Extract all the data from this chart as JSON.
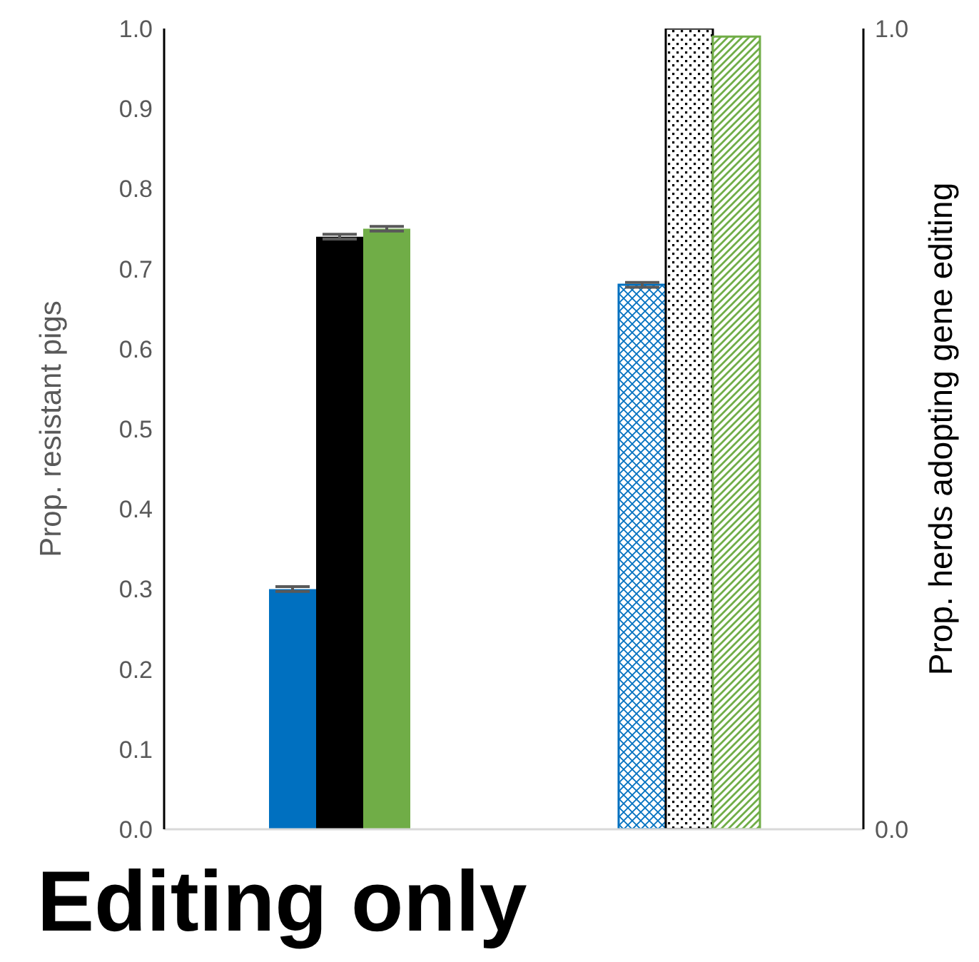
{
  "chart_data": {
    "type": "bar",
    "title": "Editing only",
    "ylabel": "Prop. resistant pigs",
    "y2label": "Prop. herds adopting gene editing",
    "categories": [
      null,
      null
    ],
    "series": [
      {
        "color": "#0070c0",
        "values": [
          0.3,
          null
        ],
        "errors": [
          0.003,
          null
        ]
      },
      {
        "color": "#000000",
        "values": [
          0.74,
          null
        ],
        "errors": [
          0.003,
          null
        ]
      },
      {
        "color": "#70ad47",
        "values": [
          0.75,
          null
        ],
        "errors": [
          0.003,
          null
        ]
      },
      {
        "color": "#0070c0",
        "values": [
          null,
          0.68
        ],
        "errors": [
          null,
          0.003
        ],
        "axis": "y2"
      },
      {
        "color": "#000000",
        "values": [
          null,
          1.0
        ],
        "axis": "y2"
      },
      {
        "color": "#70ad47",
        "values": [
          null,
          0.99
        ],
        "axis": "y2"
      }
    ],
    "ylim": [
      0,
      1
    ],
    "yticks": [
      {
        "value": 0,
        "label": "0.0"
      },
      0.1,
      0.2,
      0.3,
      0.4,
      0.5,
      0.6,
      0.7,
      0.8,
      0.9,
      {
        "value": 1,
        "label": "1.0"
      }
    ],
    "y2lim": [
      0,
      1
    ],
    "y2ticks": [
      {
        "value": 0,
        "label": "0.0"
      },
      {
        "value": 1,
        "label": "1.0"
      }
    ],
    "grid": false,
    "legend": false
  }
}
